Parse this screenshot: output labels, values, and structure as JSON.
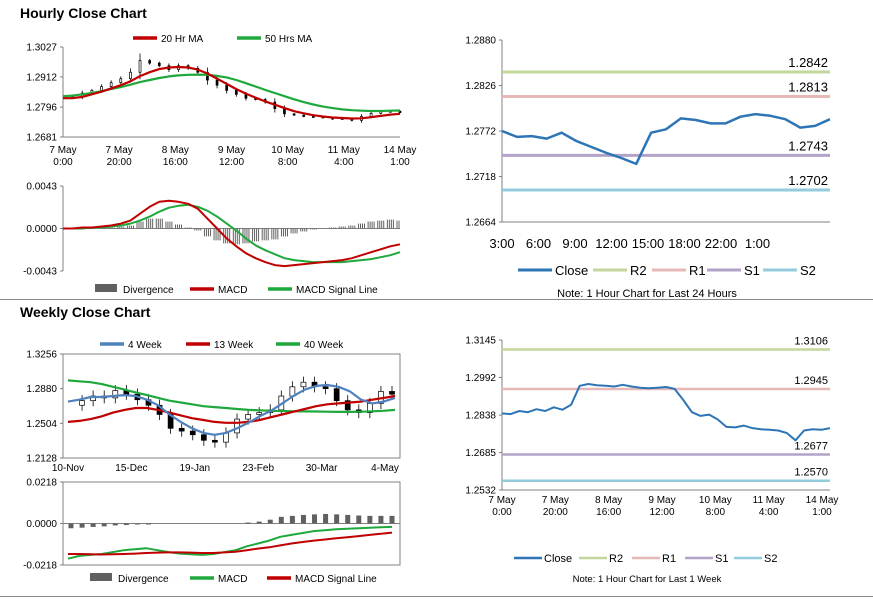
{
  "sections": {
    "hourly_title": "Hourly Close Chart",
    "weekly_title": "Weekly Close Chart"
  },
  "colors": {
    "ma20": "#c00000",
    "ma50": "#1fa83c",
    "macd_red": "#c00000",
    "signal_green": "#1fa83c",
    "divergence": "#606060",
    "close": "#2e75b6",
    "r2": "#c3d69b",
    "r1": "#e6b9b8",
    "s1": "#b3a2c7",
    "s2": "#93cddd",
    "ma4": "#4f81bd",
    "ma13": "#c00000",
    "ma40": "#1fa83c"
  },
  "chart_data": [
    {
      "id": "hourly-candles",
      "type": "line",
      "legend": [
        "20 Hr MA",
        "50 Hrs MA"
      ],
      "yticks": [
        "1.3027",
        "1.2912",
        "1.2796",
        "1.2681"
      ],
      "ylim": [
        1.2681,
        1.3027
      ],
      "xticks": [
        {
          "l1": "7 May",
          "l2": "0:00"
        },
        {
          "l1": "7 May",
          "l2": "20:00"
        },
        {
          "l1": "8 May",
          "l2": "16:00"
        },
        {
          "l1": "9 May",
          "l2": "12:00"
        },
        {
          "l1": "10 May",
          "l2": "8:00"
        },
        {
          "l1": "11 May",
          "l2": "4:00"
        },
        {
          "l1": "14 May",
          "l2": "1:00"
        }
      ],
      "series": [
        {
          "name": "Price",
          "values": [
            1.283,
            1.2835,
            1.285,
            1.286,
            1.2875,
            1.289,
            1.2905,
            1.293,
            1.2975,
            1.2965,
            1.2955,
            1.294,
            1.2955,
            1.2945,
            1.293,
            1.29,
            1.288,
            1.286,
            1.2845,
            1.283,
            1.2825,
            1.2815,
            1.279,
            1.277,
            1.2765,
            1.276,
            1.2758,
            1.2755,
            1.275,
            1.2752,
            1.2745,
            1.276,
            1.2772,
            1.2778,
            1.278,
            1.2775
          ]
        },
        {
          "name": "20 Hr MA",
          "values": [
            1.283,
            1.283,
            1.2835,
            1.2845,
            1.2855,
            1.2868,
            1.288,
            1.2895,
            1.2915,
            1.293,
            1.2942,
            1.2948,
            1.295,
            1.2948,
            1.294,
            1.2925,
            1.2905,
            1.2885,
            1.2865,
            1.2848,
            1.2832,
            1.2818,
            1.2805,
            1.2792,
            1.278,
            1.2772,
            1.2765,
            1.276,
            1.2756,
            1.2754,
            1.2752,
            1.2753,
            1.2757,
            1.2762,
            1.2767,
            1.277
          ]
        },
        {
          "name": "50 Hrs MA",
          "values": [
            1.2838,
            1.284,
            1.2845,
            1.285,
            1.2857,
            1.2865,
            1.2873,
            1.2882,
            1.2892,
            1.29,
            1.2908,
            1.2914,
            1.2918,
            1.292,
            1.2921,
            1.292,
            1.2916,
            1.291,
            1.29,
            1.2888,
            1.2875,
            1.2862,
            1.285,
            1.2838,
            1.2826,
            1.2815,
            1.2806,
            1.2798,
            1.2792,
            1.2787,
            1.2784,
            1.2782,
            1.2781,
            1.2781,
            1.2782,
            1.2783
          ]
        }
      ]
    },
    {
      "id": "hourly-macd",
      "type": "line",
      "legend": [
        "Divergence",
        "MACD",
        "MACD Signal Line"
      ],
      "yticks": [
        "0.0043",
        "0.0000",
        "-0.0043"
      ],
      "ylim": [
        -0.0043,
        0.0043
      ],
      "series": [
        {
          "name": "MACD",
          "values": [
            0.0,
            0.0,
            0.0001,
            0.0001,
            0.0002,
            0.0003,
            0.0005,
            0.0008,
            0.0015,
            0.0022,
            0.0027,
            0.0028,
            0.0027,
            0.0025,
            0.002,
            0.001,
            0.0,
            -0.001,
            -0.0018,
            -0.0025,
            -0.003,
            -0.0034,
            -0.0037,
            -0.0038,
            -0.0037,
            -0.0036,
            -0.0035,
            -0.0034,
            -0.0033,
            -0.0032,
            -0.003,
            -0.0027,
            -0.0024,
            -0.0021,
            -0.0018,
            -0.0016
          ]
        },
        {
          "name": "MACD Signal Line",
          "values": [
            0.0,
            0.0,
            0.0,
            0.0001,
            0.0001,
            0.0002,
            0.0003,
            0.0005,
            0.0008,
            0.0012,
            0.0017,
            0.0021,
            0.0023,
            0.0024,
            0.0022,
            0.0018,
            0.0012,
            0.0005,
            -0.0002,
            -0.001,
            -0.0017,
            -0.0022,
            -0.0026,
            -0.003,
            -0.0032,
            -0.0033,
            -0.0034,
            -0.0034,
            -0.0034,
            -0.0034,
            -0.0033,
            -0.0032,
            -0.0031,
            -0.0029,
            -0.0027,
            -0.0024
          ]
        }
      ]
    },
    {
      "id": "hourly-levels",
      "type": "line",
      "yticks": [
        "1.2880",
        "1.2826",
        "1.2772",
        "1.2718",
        "1.2664"
      ],
      "ylim": [
        1.2664,
        1.288
      ],
      "xticks": [
        "3:00",
        "6:00",
        "9:00",
        "12:00",
        "15:00",
        "18:00",
        "22:00",
        "1:00"
      ],
      "levels": [
        {
          "name": "R2",
          "value": 1.2842,
          "label": "1.2842"
        },
        {
          "name": "R1",
          "value": 1.2813,
          "label": "1.2813"
        },
        {
          "name": "S1",
          "value": 1.2743,
          "label": "1.2743"
        },
        {
          "name": "S2",
          "value": 1.2702,
          "label": "1.2702"
        }
      ],
      "series": [
        {
          "name": "Close",
          "values": [
            1.2772,
            1.2765,
            1.2766,
            1.2763,
            1.277,
            1.276,
            1.2753,
            1.2746,
            1.274,
            1.2733,
            1.277,
            1.2774,
            1.2787,
            1.2785,
            1.2781,
            1.2781,
            1.2789,
            1.2792,
            1.279,
            1.2786,
            1.2776,
            1.2778,
            1.2786
          ]
        },
        {
          "name": "R2",
          "values": []
        },
        {
          "name": "R1",
          "values": []
        },
        {
          "name": "S1",
          "values": []
        },
        {
          "name": "S2",
          "values": []
        }
      ],
      "note": "Note: 1 Hour Chart for Last 24 Hours"
    },
    {
      "id": "weekly-candles",
      "type": "line",
      "legend": [
        "4 Week",
        "13 Week",
        "40 Week"
      ],
      "yticks": [
        "1.3256",
        "1.2880",
        "1.2504",
        "1.2128"
      ],
      "ylim": [
        1.2128,
        1.3256
      ],
      "xticks": [
        "10-Nov",
        "15-Dec",
        "19-Jan",
        "23-Feb",
        "30-Mar",
        "4-May"
      ],
      "series": [
        {
          "name": "Price",
          "values": [
            1.27,
            1.275,
            1.28,
            1.278,
            1.286,
            1.282,
            1.276,
            1.27,
            1.26,
            1.245,
            1.242,
            1.238,
            1.232,
            1.23,
            1.24,
            1.255,
            1.26,
            1.262,
            1.265,
            1.28,
            1.29,
            1.295,
            1.29,
            1.288,
            1.275,
            1.265,
            1.262,
            1.272,
            1.285,
            1.282
          ]
        },
        {
          "name": "4 Week",
          "values": [
            1.274,
            1.276,
            1.279,
            1.279,
            1.28,
            1.281,
            1.28,
            1.276,
            1.27,
            1.26,
            1.252,
            1.245,
            1.24,
            1.238,
            1.24,
            1.245,
            1.251,
            1.258,
            1.264,
            1.272,
            1.28,
            1.287,
            1.291,
            1.292,
            1.29,
            1.285,
            1.276,
            1.272,
            1.274,
            1.278
          ]
        },
        {
          "name": "13 Week",
          "values": [
            1.252,
            1.253,
            1.255,
            1.258,
            1.262,
            1.265,
            1.267,
            1.267,
            1.265,
            1.262,
            1.259,
            1.256,
            1.254,
            1.252,
            1.251,
            1.251,
            1.252,
            1.254,
            1.257,
            1.26,
            1.263,
            1.266,
            1.269,
            1.271,
            1.272,
            1.273,
            1.274,
            1.276,
            1.278,
            1.28
          ]
        },
        {
          "name": "40 Week",
          "values": [
            1.297,
            1.296,
            1.295,
            1.293,
            1.29,
            1.287,
            1.284,
            1.281,
            1.278,
            1.275,
            1.273,
            1.271,
            1.269,
            1.268,
            1.267,
            1.266,
            1.265,
            1.2645,
            1.264,
            1.2638,
            1.2635,
            1.2633,
            1.2632,
            1.263,
            1.2628,
            1.2628,
            1.263,
            1.2635,
            1.264,
            1.265
          ]
        }
      ]
    },
    {
      "id": "weekly-macd",
      "type": "line",
      "legend": [
        "Divergence",
        "MACD",
        "MACD Signal Line"
      ],
      "yticks": [
        "0.0218",
        "0.0000",
        "-0.0218"
      ],
      "ylim": [
        -0.0218,
        0.0218
      ],
      "series": [
        {
          "name": "Divergence",
          "values": [
            -0.0025,
            -0.0022,
            -0.0018,
            -0.0015,
            -0.001,
            -0.0008,
            -0.0005,
            -0.0002,
            0.0,
            0.0,
            0.0,
            0.0,
            0.0,
            0.0,
            0.0,
            0.0,
            0.0005,
            0.001,
            0.002,
            0.0035,
            0.004,
            0.0045,
            0.0048,
            0.005,
            0.0048,
            0.0045,
            0.0042,
            0.004,
            0.004,
            0.004
          ]
        },
        {
          "name": "MACD",
          "values": [
            -0.0185,
            -0.017,
            -0.0165,
            -0.016,
            -0.015,
            -0.014,
            -0.0135,
            -0.013,
            -0.014,
            -0.015,
            -0.0158,
            -0.0162,
            -0.0165,
            -0.016,
            -0.015,
            -0.014,
            -0.012,
            -0.0105,
            -0.009,
            -0.007,
            -0.006,
            -0.005,
            -0.004,
            -0.0035,
            -0.003,
            -0.0028,
            -0.0025,
            -0.0022,
            -0.002,
            -0.0018
          ]
        },
        {
          "name": "MACD Signal Line",
          "values": [
            -0.016,
            -0.016,
            -0.0162,
            -0.0163,
            -0.0162,
            -0.016,
            -0.0158,
            -0.0155,
            -0.0153,
            -0.0152,
            -0.0152,
            -0.0153,
            -0.0155,
            -0.0155,
            -0.0152,
            -0.0148,
            -0.014,
            -0.0132,
            -0.0125,
            -0.0115,
            -0.0105,
            -0.0097,
            -0.009,
            -0.0084,
            -0.0078,
            -0.0072,
            -0.0066,
            -0.006,
            -0.0054,
            -0.0048
          ]
        }
      ]
    },
    {
      "id": "weekly-levels",
      "type": "line",
      "yticks": [
        "1.3145",
        "1.2992",
        "1.2838",
        "1.2685",
        "1.2532"
      ],
      "ylim": [
        1.2532,
        1.3145
      ],
      "xticks": [
        {
          "l1": "7 May",
          "l2": "0:00"
        },
        {
          "l1": "7 May",
          "l2": "20:00"
        },
        {
          "l1": "8 May",
          "l2": "16:00"
        },
        {
          "l1": "9 May",
          "l2": "12:00"
        },
        {
          "l1": "10 May",
          "l2": "8:00"
        },
        {
          "l1": "11 May",
          "l2": "4:00"
        },
        {
          "l1": "14 May",
          "l2": "1:00"
        }
      ],
      "levels": [
        {
          "name": "R2",
          "value": 1.3106,
          "label": "1.3106"
        },
        {
          "name": "R1",
          "value": 1.2945,
          "label": "1.2945"
        },
        {
          "name": "S1",
          "value": 1.2677,
          "label": "1.2677"
        },
        {
          "name": "S2",
          "value": 1.257,
          "label": "1.2570"
        }
      ],
      "series": [
        {
          "name": "Close",
          "values": [
            1.2845,
            1.2842,
            1.2855,
            1.285,
            1.2862,
            1.2855,
            1.287,
            1.286,
            1.288,
            1.2958,
            1.2965,
            1.296,
            1.2958,
            1.2955,
            1.2962,
            1.2955,
            1.295,
            1.2948,
            1.295,
            1.2953,
            1.2945,
            1.29,
            1.285,
            1.2835,
            1.284,
            1.282,
            1.279,
            1.2788,
            1.2795,
            1.2785,
            1.278,
            1.2778,
            1.2775,
            1.2765,
            1.2735,
            1.2775,
            1.278,
            1.2778,
            1.2785
          ]
        },
        {
          "name": "R2",
          "values": []
        },
        {
          "name": "R1",
          "values": []
        },
        {
          "name": "S1",
          "values": []
        },
        {
          "name": "S2",
          "values": []
        }
      ],
      "note": "Note: 1 Hour Chart for Last 1 Week"
    }
  ]
}
